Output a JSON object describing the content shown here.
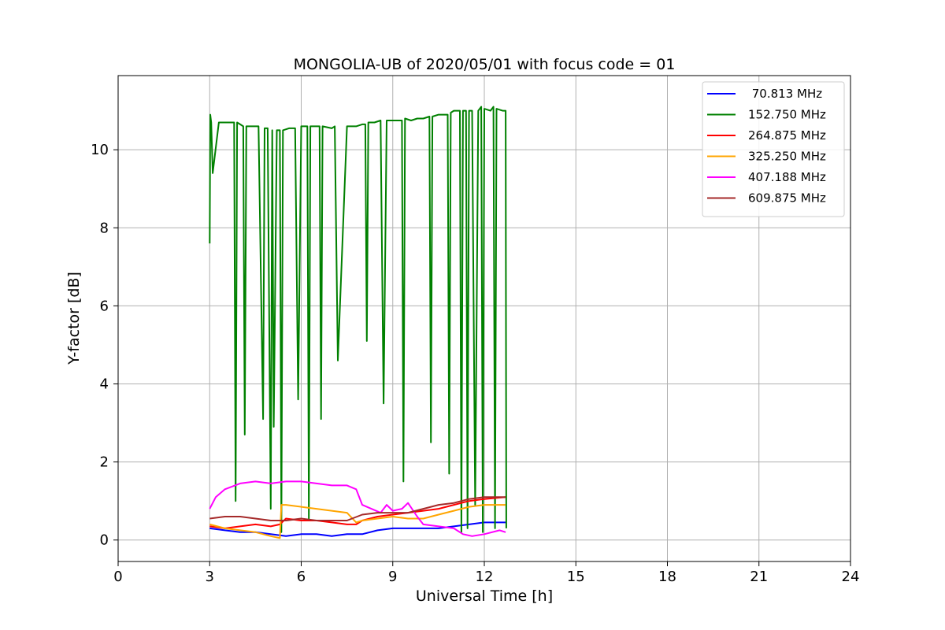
{
  "chart_data": {
    "type": "line",
    "title": "MONGOLIA-UB of 2020/05/01 with focus code = 01",
    "xlabel": "Universal Time [h]",
    "ylabel": "Y-factor [dB]",
    "xlim": [
      0,
      24
    ],
    "ylim": [
      -0.55,
      11.9
    ],
    "xticks": [
      0,
      3,
      6,
      9,
      12,
      15,
      18,
      21,
      24
    ],
    "xtick_labels": [
      "0",
      "3",
      "6",
      "9",
      "12",
      "15",
      "18",
      "21",
      "24"
    ],
    "yticks": [
      0,
      2,
      4,
      6,
      8,
      10
    ],
    "ytick_labels": [
      "0",
      "2",
      "4",
      "6",
      "8",
      "10"
    ],
    "grid": true,
    "legend_position": "top-right",
    "series": [
      {
        "name": " 70.813 MHz",
        "color": "#0000ff",
        "x": [
          3.0,
          3.5,
          4.0,
          4.5,
          5.0,
          5.5,
          6.0,
          6.5,
          7.0,
          7.5,
          8.0,
          8.5,
          9.0,
          9.5,
          10.0,
          10.5,
          11.0,
          11.5,
          12.0,
          12.7
        ],
        "y": [
          0.3,
          0.25,
          0.2,
          0.2,
          0.15,
          0.1,
          0.15,
          0.15,
          0.1,
          0.15,
          0.15,
          0.25,
          0.3,
          0.3,
          0.3,
          0.3,
          0.35,
          0.4,
          0.45,
          0.45
        ]
      },
      {
        "name": "152.750 MHz",
        "color": "#008000",
        "x": [
          3.0,
          3.02,
          3.05,
          3.1,
          3.3,
          3.6,
          3.8,
          3.85,
          3.9,
          4.0,
          4.1,
          4.15,
          4.2,
          4.4,
          4.6,
          4.75,
          4.8,
          4.9,
          5.0,
          5.05,
          5.1,
          5.2,
          5.3,
          5.35,
          5.4,
          5.6,
          5.8,
          5.9,
          6.0,
          6.1,
          6.2,
          6.25,
          6.3,
          6.5,
          6.6,
          6.65,
          6.7,
          7.0,
          7.1,
          7.2,
          7.5,
          7.8,
          8.0,
          8.1,
          8.15,
          8.2,
          8.4,
          8.6,
          8.7,
          8.8,
          9.0,
          9.2,
          9.3,
          9.35,
          9.4,
          9.6,
          9.8,
          10.0,
          10.2,
          10.25,
          10.3,
          10.5,
          10.8,
          10.85,
          10.9,
          11.0,
          11.2,
          11.25,
          11.3,
          11.4,
          11.45,
          11.5,
          11.6,
          11.7,
          11.8,
          11.9,
          11.95,
          12.0,
          12.2,
          12.3,
          12.35,
          12.4,
          12.6,
          12.7,
          12.72
        ],
        "y": [
          7.6,
          10.9,
          10.7,
          9.4,
          10.7,
          10.7,
          10.7,
          1.0,
          10.7,
          10.65,
          10.6,
          2.7,
          10.6,
          10.6,
          10.6,
          3.1,
          10.55,
          10.55,
          0.8,
          10.5,
          2.9,
          10.5,
          10.5,
          0.2,
          10.5,
          10.55,
          10.55,
          3.6,
          10.6,
          10.6,
          10.6,
          0.5,
          10.6,
          10.6,
          10.6,
          3.1,
          10.6,
          10.55,
          10.6,
          4.6,
          10.6,
          10.6,
          10.65,
          10.65,
          5.1,
          10.7,
          10.7,
          10.75,
          3.5,
          10.75,
          10.75,
          10.75,
          10.75,
          1.5,
          10.8,
          10.75,
          10.8,
          10.8,
          10.85,
          2.5,
          10.85,
          10.9,
          10.9,
          1.7,
          10.95,
          11.0,
          11.0,
          0.2,
          11.0,
          11.0,
          0.3,
          11.0,
          11.0,
          0.9,
          11.0,
          11.1,
          0.2,
          11.05,
          11.0,
          11.1,
          0.3,
          11.05,
          11.0,
          11.0,
          0.3
        ]
      },
      {
        "name": "264.875 MHz",
        "color": "#ff0000",
        "x": [
          3.0,
          3.5,
          4.0,
          4.5,
          5.0,
          5.3,
          5.5,
          6.0,
          6.5,
          7.0,
          7.5,
          7.8,
          8.0,
          8.5,
          9.0,
          9.5,
          10.0,
          10.5,
          11.0,
          11.5,
          12.0,
          12.7
        ],
        "y": [
          0.35,
          0.3,
          0.35,
          0.4,
          0.35,
          0.4,
          0.55,
          0.5,
          0.5,
          0.45,
          0.4,
          0.4,
          0.5,
          0.6,
          0.65,
          0.7,
          0.75,
          0.8,
          0.9,
          1.0,
          1.05,
          1.1
        ]
      },
      {
        "name": "325.250 MHz",
        "color": "#ffa500",
        "x": [
          3.0,
          3.5,
          4.0,
          4.5,
          5.0,
          5.3,
          5.35,
          5.5,
          6.0,
          6.5,
          7.0,
          7.5,
          7.8,
          8.0,
          8.5,
          9.0,
          9.5,
          10.0,
          10.5,
          11.0,
          11.5,
          12.0,
          12.7
        ],
        "y": [
          0.4,
          0.3,
          0.25,
          0.2,
          0.1,
          0.05,
          0.9,
          0.9,
          0.85,
          0.8,
          0.75,
          0.7,
          0.45,
          0.5,
          0.55,
          0.6,
          0.55,
          0.55,
          0.65,
          0.75,
          0.85,
          0.9,
          0.9
        ]
      },
      {
        "name": "407.188 MHz",
        "color": "#ff00ff",
        "x": [
          3.0,
          3.2,
          3.5,
          4.0,
          4.5,
          5.0,
          5.5,
          6.0,
          6.5,
          7.0,
          7.5,
          7.8,
          8.0,
          8.3,
          8.6,
          8.8,
          9.0,
          9.3,
          9.5,
          9.8,
          10.0,
          10.5,
          11.0,
          11.3,
          11.6,
          12.0,
          12.5,
          12.7
        ],
        "y": [
          0.8,
          1.1,
          1.3,
          1.45,
          1.5,
          1.45,
          1.5,
          1.5,
          1.45,
          1.4,
          1.4,
          1.3,
          0.9,
          0.8,
          0.7,
          0.9,
          0.75,
          0.8,
          0.95,
          0.6,
          0.4,
          0.35,
          0.3,
          0.15,
          0.1,
          0.15,
          0.25,
          0.2
        ]
      },
      {
        "name": "609.875 MHz",
        "color": "#a52a2a",
        "x": [
          3.0,
          3.5,
          4.0,
          4.5,
          5.0,
          5.5,
          6.0,
          6.5,
          7.0,
          7.5,
          8.0,
          8.5,
          9.0,
          9.5,
          10.0,
          10.5,
          11.0,
          11.5,
          12.0,
          12.7
        ],
        "y": [
          0.55,
          0.6,
          0.6,
          0.55,
          0.5,
          0.5,
          0.55,
          0.5,
          0.5,
          0.5,
          0.65,
          0.7,
          0.7,
          0.7,
          0.8,
          0.9,
          0.95,
          1.05,
          1.1,
          1.1
        ]
      }
    ]
  }
}
